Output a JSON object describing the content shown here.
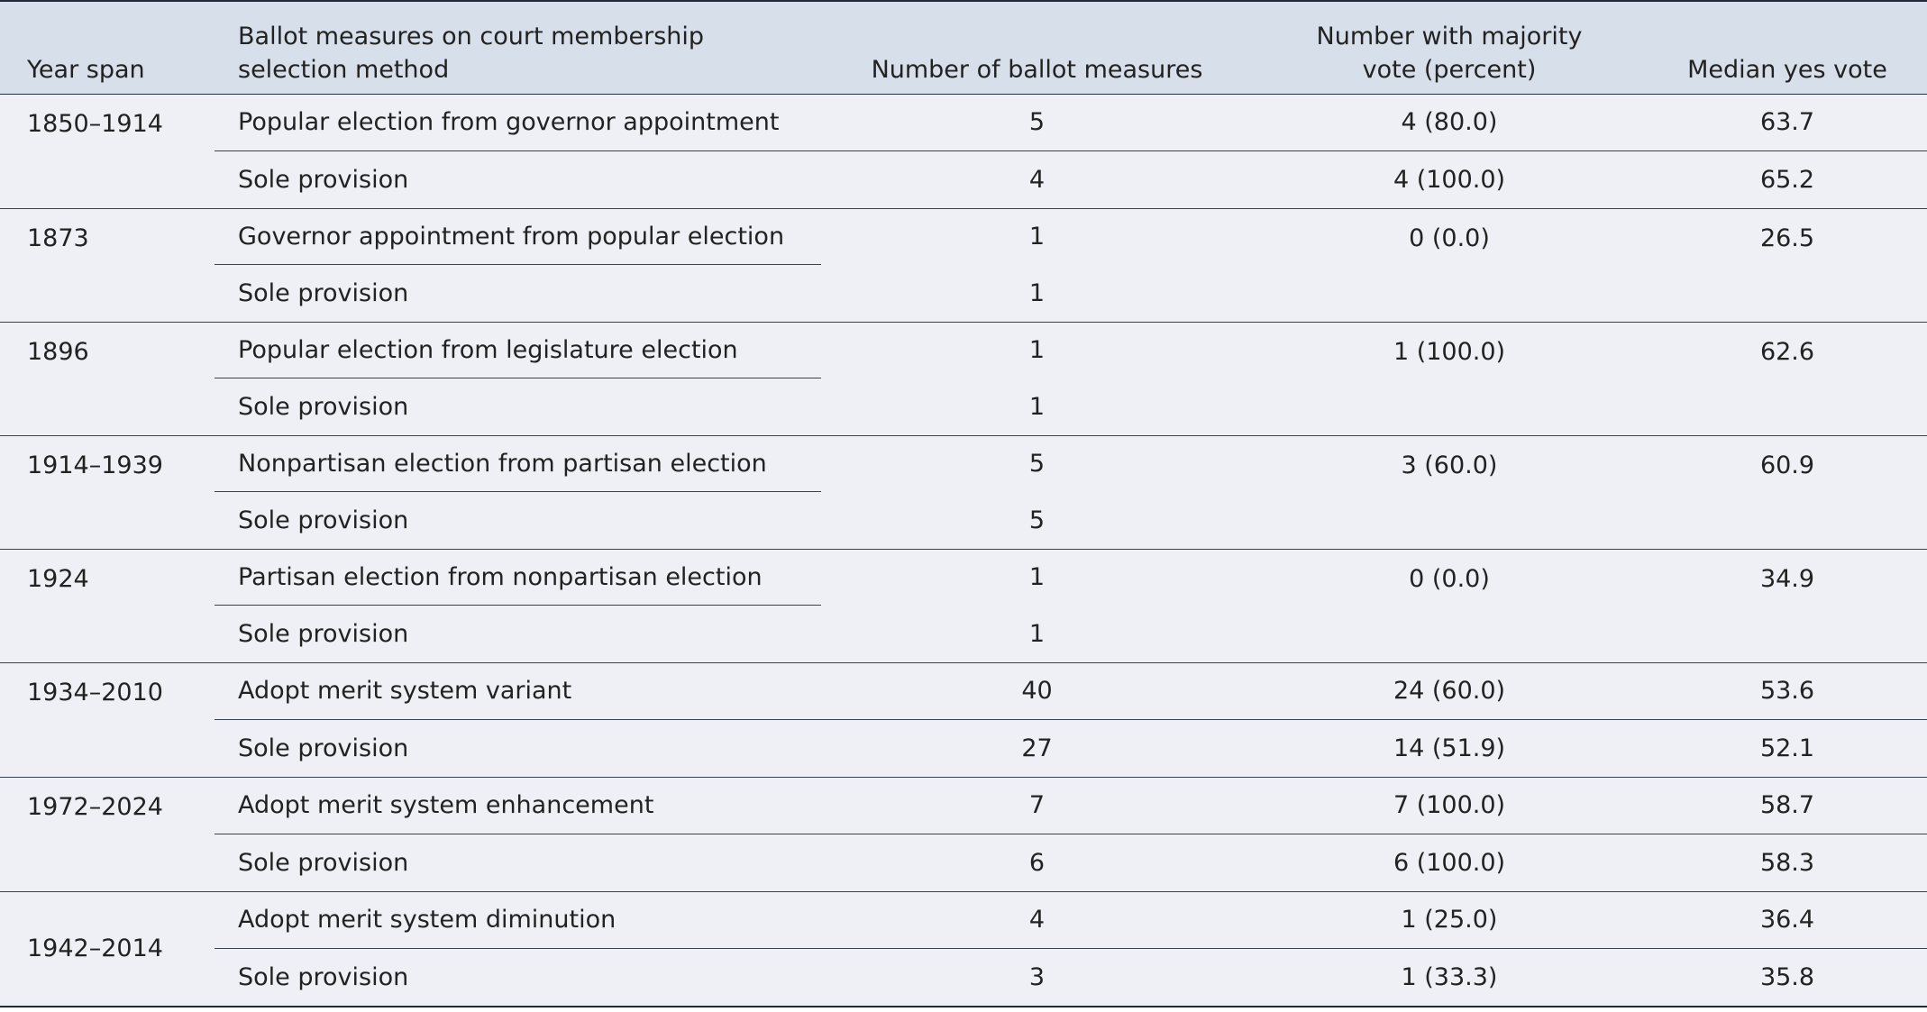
{
  "header": {
    "year_span": "Year span",
    "measure": "Ballot measures on court membership selection method",
    "count": "Number of ballot measures",
    "majority": "Number with majority vote (percent)",
    "median": "Median yes vote"
  },
  "groups": [
    {
      "year": "1850–1914",
      "rows": [
        {
          "measure": "Popular election from governor appointment",
          "count": "5",
          "majority": "4 (80.0)",
          "median": "63.7"
        },
        {
          "measure": "Sole provision",
          "count": "4",
          "majority": "4 (100.0)",
          "median": "65.2"
        }
      ]
    },
    {
      "year": "1873",
      "rows": [
        {
          "measure": "Governor appointment from popular election",
          "count": "1",
          "majority": "0 (0.0)",
          "median": "26.5"
        },
        {
          "measure": "Sole provision",
          "count": "1",
          "majority": "",
          "median": ""
        }
      ]
    },
    {
      "year": "1896",
      "rows": [
        {
          "measure": "Popular election from legislature election",
          "count": "1",
          "majority": "1 (100.0)",
          "median": "62.6"
        },
        {
          "measure": "Sole provision",
          "count": "1",
          "majority": "",
          "median": ""
        }
      ]
    },
    {
      "year": "1914–1939",
      "rows": [
        {
          "measure": "Nonpartisan election from partisan election",
          "count": "5",
          "majority": "3 (60.0)",
          "median": "60.9"
        },
        {
          "measure": "Sole provision",
          "count": "5",
          "majority": "",
          "median": ""
        }
      ]
    },
    {
      "year": "1924",
      "rows": [
        {
          "measure": "Partisan election from nonpartisan election",
          "count": "1",
          "majority": "0 (0.0)",
          "median": "34.9"
        },
        {
          "measure": "Sole provision",
          "count": "1",
          "majority": "",
          "median": ""
        }
      ]
    },
    {
      "year": "1934–2010",
      "rows": [
        {
          "measure": "Adopt merit system variant",
          "count": "40",
          "majority": "24 (60.0)",
          "median": "53.6"
        },
        {
          "measure": "Sole provision",
          "count": "27",
          "majority": "14 (51.9)",
          "median": "52.1"
        }
      ]
    },
    {
      "year": "1972–2024",
      "rows": [
        {
          "measure": "Adopt merit system enhancement",
          "count": "7",
          "majority": "7 (100.0)",
          "median": "58.7"
        },
        {
          "measure": "Sole provision",
          "count": "6",
          "majority": "6 (100.0)",
          "median": "58.3"
        }
      ]
    },
    {
      "year": "1942–2014",
      "rows": [
        {
          "measure": "Adopt merit system diminution",
          "count": "4",
          "majority": "1 (25.0)",
          "median": "36.4"
        },
        {
          "measure": "Sole provision",
          "count": "3",
          "majority": "1 (33.3)",
          "median": "35.8"
        }
      ]
    }
  ]
}
